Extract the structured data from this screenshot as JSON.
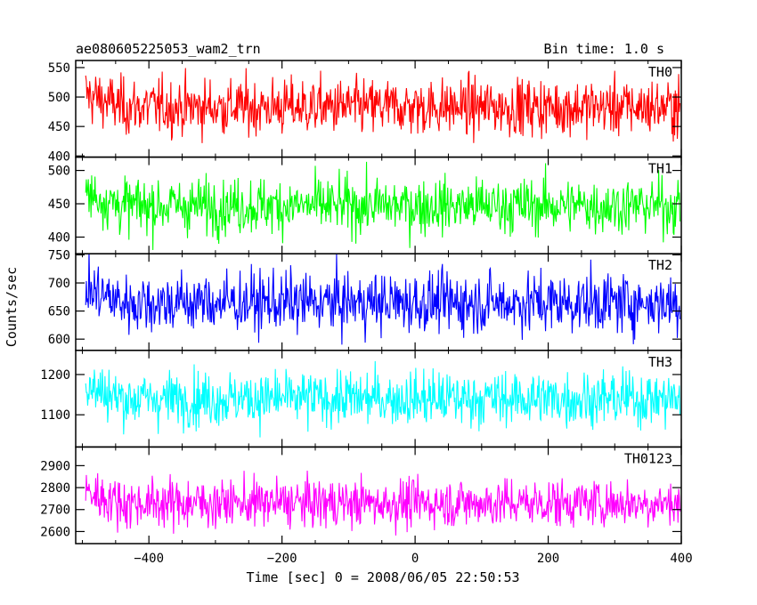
{
  "header": {
    "title": "ae080605225053_wam2_trn",
    "bin_time": "Bin time: 1.0 s"
  },
  "axes": {
    "xlabel": "Time [sec] 0 = 2008/06/05 22:50:53",
    "ylabel": "Counts/sec"
  },
  "chart_data": {
    "type": "line",
    "x_range": [
      -510,
      400
    ],
    "x_ticks": [
      -400,
      -200,
      0,
      200,
      400
    ],
    "xlabel": "Time [sec] 0 = 2008/06/05 22:50:53",
    "ylabel": "Counts/sec",
    "title": "ae080605225053_wam2_trn",
    "bin_time_s": 1.0,
    "grid": false,
    "panels": [
      {
        "name": "TH0",
        "color": "#ff0000",
        "ylim": [
          398,
          562
        ],
        "yticks": [
          400,
          450,
          500,
          550
        ],
        "mean": 483,
        "sd": 24
      },
      {
        "name": "TH1",
        "color": "#00ff00",
        "ylim": [
          375,
          520
        ],
        "yticks": [
          400,
          450,
          500
        ],
        "mean": 447,
        "sd": 21
      },
      {
        "name": "TH2",
        "color": "#0000ff",
        "ylim": [
          580,
          752
        ],
        "yticks": [
          600,
          650,
          700,
          750
        ],
        "mean": 665,
        "sd": 27
      },
      {
        "name": "TH3",
        "color": "#00ffff",
        "ylim": [
          1020,
          1260
        ],
        "yticks": [
          1100,
          1200
        ],
        "mean": 1140,
        "sd": 34
      },
      {
        "name": "TH0123",
        "color": "#ff00ff",
        "ylim": [
          2545,
          2985
        ],
        "yticks": [
          2600,
          2700,
          2800,
          2900
        ],
        "mean": 2730,
        "sd": 55
      }
    ]
  }
}
